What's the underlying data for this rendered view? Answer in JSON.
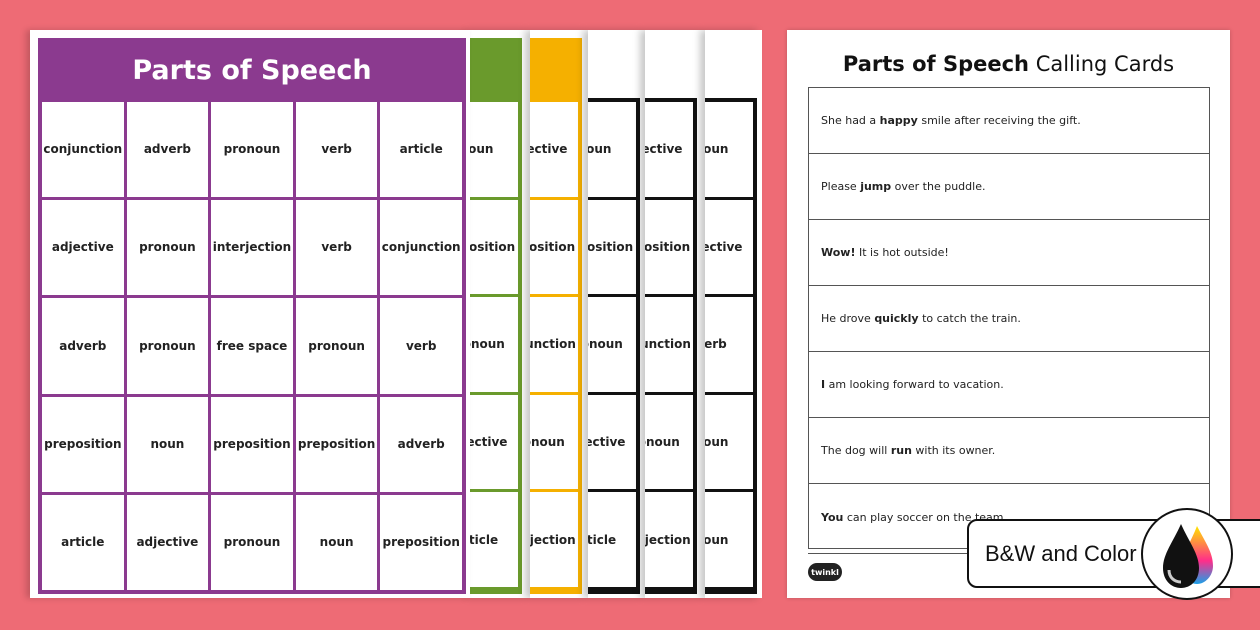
{
  "main_card": {
    "title": "Parts of Speech",
    "color": "#8b3a8f",
    "cells": [
      [
        "conjunction",
        "adverb",
        "pronoun",
        "verb",
        "article"
      ],
      [
        "adjective",
        "pronoun",
        "interjection",
        "verb",
        "conjunction"
      ],
      [
        "adverb",
        "pronoun",
        "free space",
        "pronoun",
        "verb"
      ],
      [
        "preposition",
        "noun",
        "preposition",
        "preposition",
        "adverb"
      ],
      [
        "article",
        "adjective",
        "pronoun",
        "noun",
        "preposition"
      ]
    ]
  },
  "back_cards": [
    {
      "color": "#6a9a2c",
      "header": true,
      "column": [
        "noun",
        "preposition",
        "pronoun",
        "adjective",
        "article"
      ]
    },
    {
      "color": "#f5b000",
      "header": true,
      "column": [
        "adjective",
        "preposition",
        "conjunction",
        "pronoun",
        "interjection"
      ]
    },
    {
      "color": "#111111",
      "header": false,
      "column": [
        "noun",
        "preposition",
        "pronoun",
        "adjective",
        "article"
      ]
    },
    {
      "color": "#111111",
      "header": false,
      "column": [
        "adjective",
        "preposition",
        "conjunction",
        "pronoun",
        "interjection"
      ]
    },
    {
      "color": "#111111",
      "header": false,
      "column": [
        "noun",
        "adjective",
        "verb",
        "noun",
        "noun"
      ]
    }
  ],
  "calling_cards": {
    "title_bold": "Parts of Speech",
    "title_rest": " Calling Cards",
    "rows": [
      {
        "pre": "She had a ",
        "bold": "happy",
        "post": " smile after receiving the gift."
      },
      {
        "pre": "Please ",
        "bold": "jump",
        "post": " over the puddle."
      },
      {
        "pre": "",
        "bold": "Wow!",
        "post": " It is hot outside!"
      },
      {
        "pre": "He drove ",
        "bold": "quickly",
        "post": " to catch the train."
      },
      {
        "pre": "",
        "bold": "I",
        "post": " am looking forward to vacation."
      },
      {
        "pre": "The dog will ",
        "bold": "run",
        "post": " with its owner."
      },
      {
        "pre": "",
        "bold": "You",
        "post": " can play soccer on the team."
      }
    ],
    "logo": "twinkl"
  },
  "badge": {
    "label": "B&W and Color",
    "icon": "ink-drops-icon"
  },
  "background_color": "#ee6b75"
}
